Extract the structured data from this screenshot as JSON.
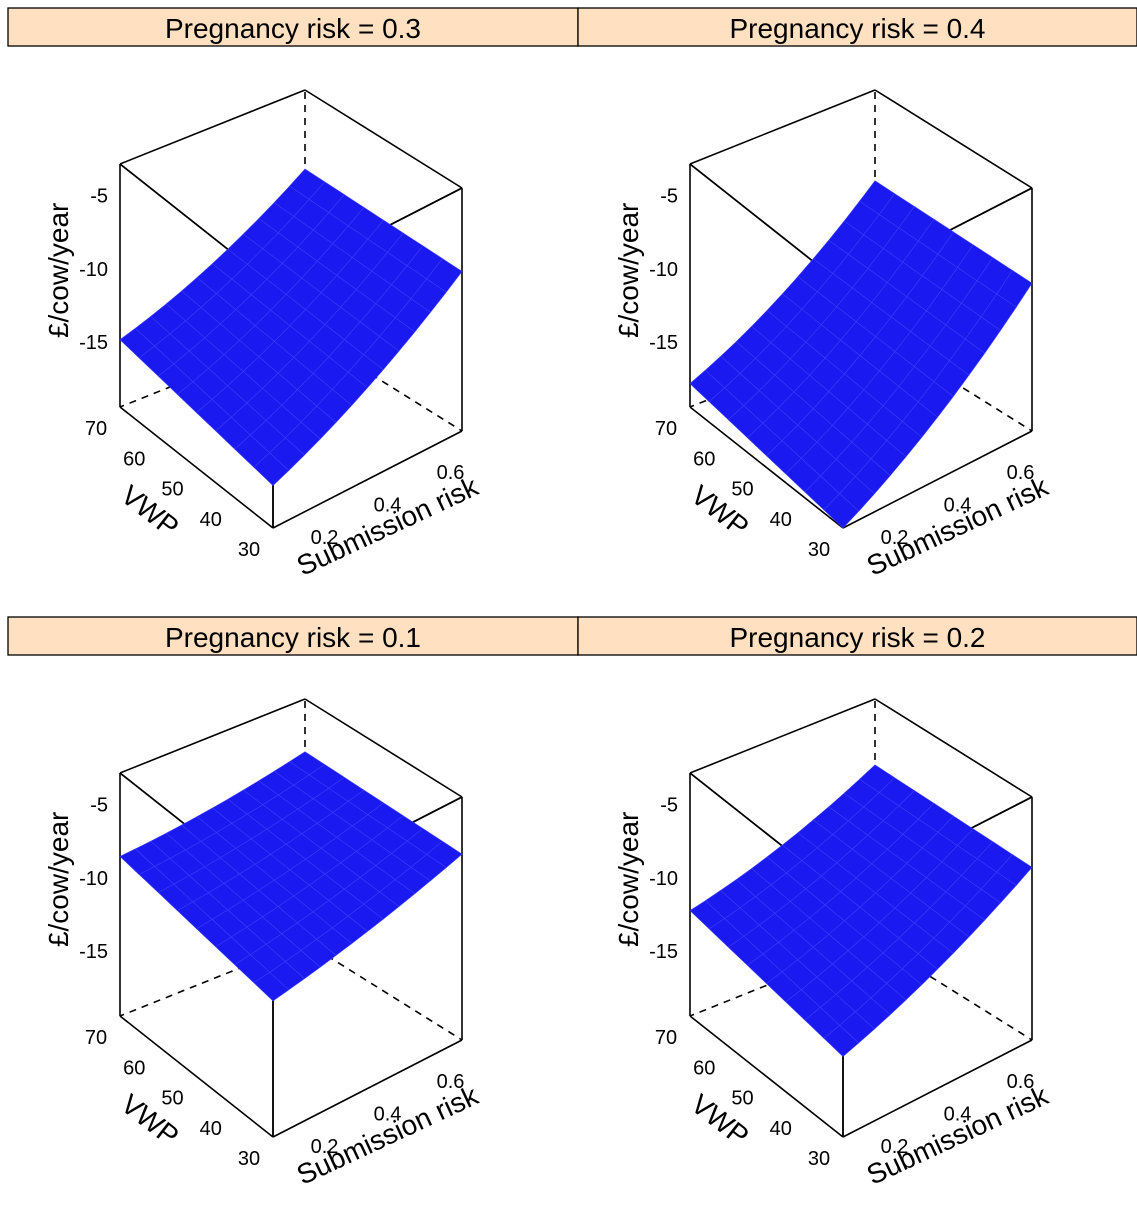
{
  "chart_data": [
    {
      "type": "surface",
      "strip_label": "Pregnancy risk = 0.3",
      "strip_color": "#FFE0C0",
      "surface_color": "#1A1AF0",
      "zlabel": "£/cow/year",
      "xlabel": "VWP",
      "ylabel": "Submission risk",
      "x_ticks": [
        "30",
        "40",
        "50",
        "60",
        "70"
      ],
      "y_ticks": [
        "0.2",
        "0.4",
        "0.6"
      ],
      "z_ticks": [
        "-5",
        "-10",
        "-15"
      ],
      "xlim": [
        30,
        70
      ],
      "ylim": [
        0.1,
        0.7
      ],
      "zlim": [
        -19.5,
        -2.9
      ],
      "corner_values": {
        "vwp30_sub0.1": -16.6,
        "vwp70_sub0.1": -14.9,
        "vwp30_sub0.7": -8.6,
        "vwp70_sub0.7": -8.3
      }
    },
    {
      "type": "surface",
      "strip_label": "Pregnancy risk = 0.4",
      "strip_color": "#FFE0C0",
      "surface_color": "#1A1AF0",
      "zlabel": "£/cow/year",
      "xlabel": "VWP",
      "ylabel": "Submission risk",
      "x_ticks": [
        "30",
        "40",
        "50",
        "60",
        "70"
      ],
      "y_ticks": [
        "0.2",
        "0.4",
        "0.6"
      ],
      "z_ticks": [
        "-5",
        "-10",
        "-15"
      ],
      "xlim": [
        30,
        70
      ],
      "ylim": [
        0.1,
        0.7
      ],
      "zlim": [
        -19.5,
        -2.9
      ],
      "corner_values": {
        "vwp30_sub0.1": -19.5,
        "vwp70_sub0.1": -17.9,
        "vwp30_sub0.7": -9.4,
        "vwp70_sub0.7": -9.1
      }
    },
    {
      "type": "surface",
      "strip_label": "Pregnancy risk = 0.1",
      "strip_color": "#FFE0C0",
      "surface_color": "#1A1AF0",
      "zlabel": "£/cow/year",
      "xlabel": "VWP",
      "ylabel": "Submission risk",
      "x_ticks": [
        "30",
        "40",
        "50",
        "60",
        "70"
      ],
      "y_ticks": [
        "0.2",
        "0.4",
        "0.6"
      ],
      "z_ticks": [
        "-5",
        "-10",
        "-15"
      ],
      "xlim": [
        30,
        70
      ],
      "ylim": [
        0.1,
        0.7
      ],
      "zlim": [
        -19.5,
        -2.9
      ],
      "corner_values": {
        "vwp30_sub0.1": -10.2,
        "vwp70_sub0.1": -8.6,
        "vwp30_sub0.7": -6.8,
        "vwp70_sub0.7": -6.5
      }
    },
    {
      "type": "surface",
      "strip_label": "Pregnancy risk = 0.2",
      "strip_color": "#FFE0C0",
      "surface_color": "#1A1AF0",
      "zlabel": "£/cow/year",
      "xlabel": "VWP",
      "ylabel": "Submission risk",
      "x_ticks": [
        "30",
        "40",
        "50",
        "60",
        "70"
      ],
      "y_ticks": [
        "0.2",
        "0.4",
        "0.6"
      ],
      "z_ticks": [
        "-5",
        "-10",
        "-15"
      ],
      "xlim": [
        30,
        70
      ],
      "ylim": [
        0.1,
        0.7
      ],
      "zlim": [
        -19.5,
        -2.9
      ],
      "corner_values": {
        "vwp30_sub0.1": -14.0,
        "vwp70_sub0.1": -12.3,
        "vwp30_sub0.7": -7.7,
        "vwp70_sub0.7": -7.4
      }
    }
  ]
}
